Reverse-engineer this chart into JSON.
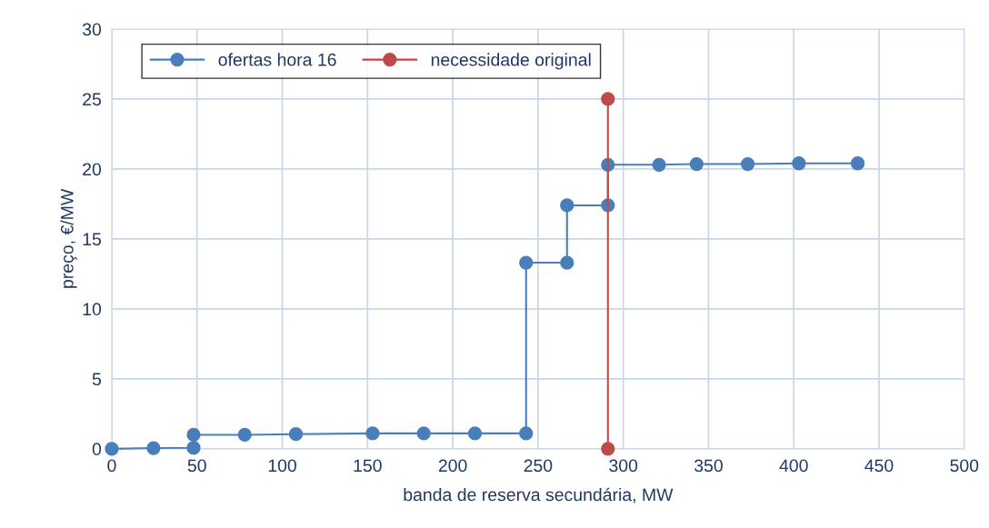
{
  "chart_data": {
    "type": "line",
    "xlabel": "banda de reserva secundária, MW",
    "ylabel": "preço, €/MW",
    "xlim": [
      0,
      500
    ],
    "xticks": [
      0,
      50,
      100,
      150,
      200,
      250,
      300,
      350,
      400,
      450,
      500
    ],
    "ylim": [
      0,
      30
    ],
    "yticks": [
      0,
      5,
      10,
      15,
      20,
      25,
      30
    ],
    "grid": true,
    "legend": "top left",
    "marker": "circle",
    "line_style": "solid",
    "series": [
      {
        "name": "ofertas hora 16",
        "color": "#4a7ebb",
        "x": [
          0,
          24.5,
          48,
          48,
          78,
          108,
          153,
          183,
          213,
          243,
          243,
          267,
          267,
          291,
          291,
          321,
          343,
          373,
          403,
          437.5
        ],
        "values": [
          0,
          0.05,
          0.07,
          1.0,
          1.0,
          1.05,
          1.1,
          1.1,
          1.1,
          1.1,
          13.3,
          13.3,
          17.4,
          17.4,
          20.3,
          20.3,
          20.35,
          20.35,
          20.4,
          20.4
        ]
      },
      {
        "name": "necessidade original",
        "color": "#be4b48",
        "x": [
          291,
          291
        ],
        "values": [
          0,
          25
        ]
      }
    ]
  }
}
